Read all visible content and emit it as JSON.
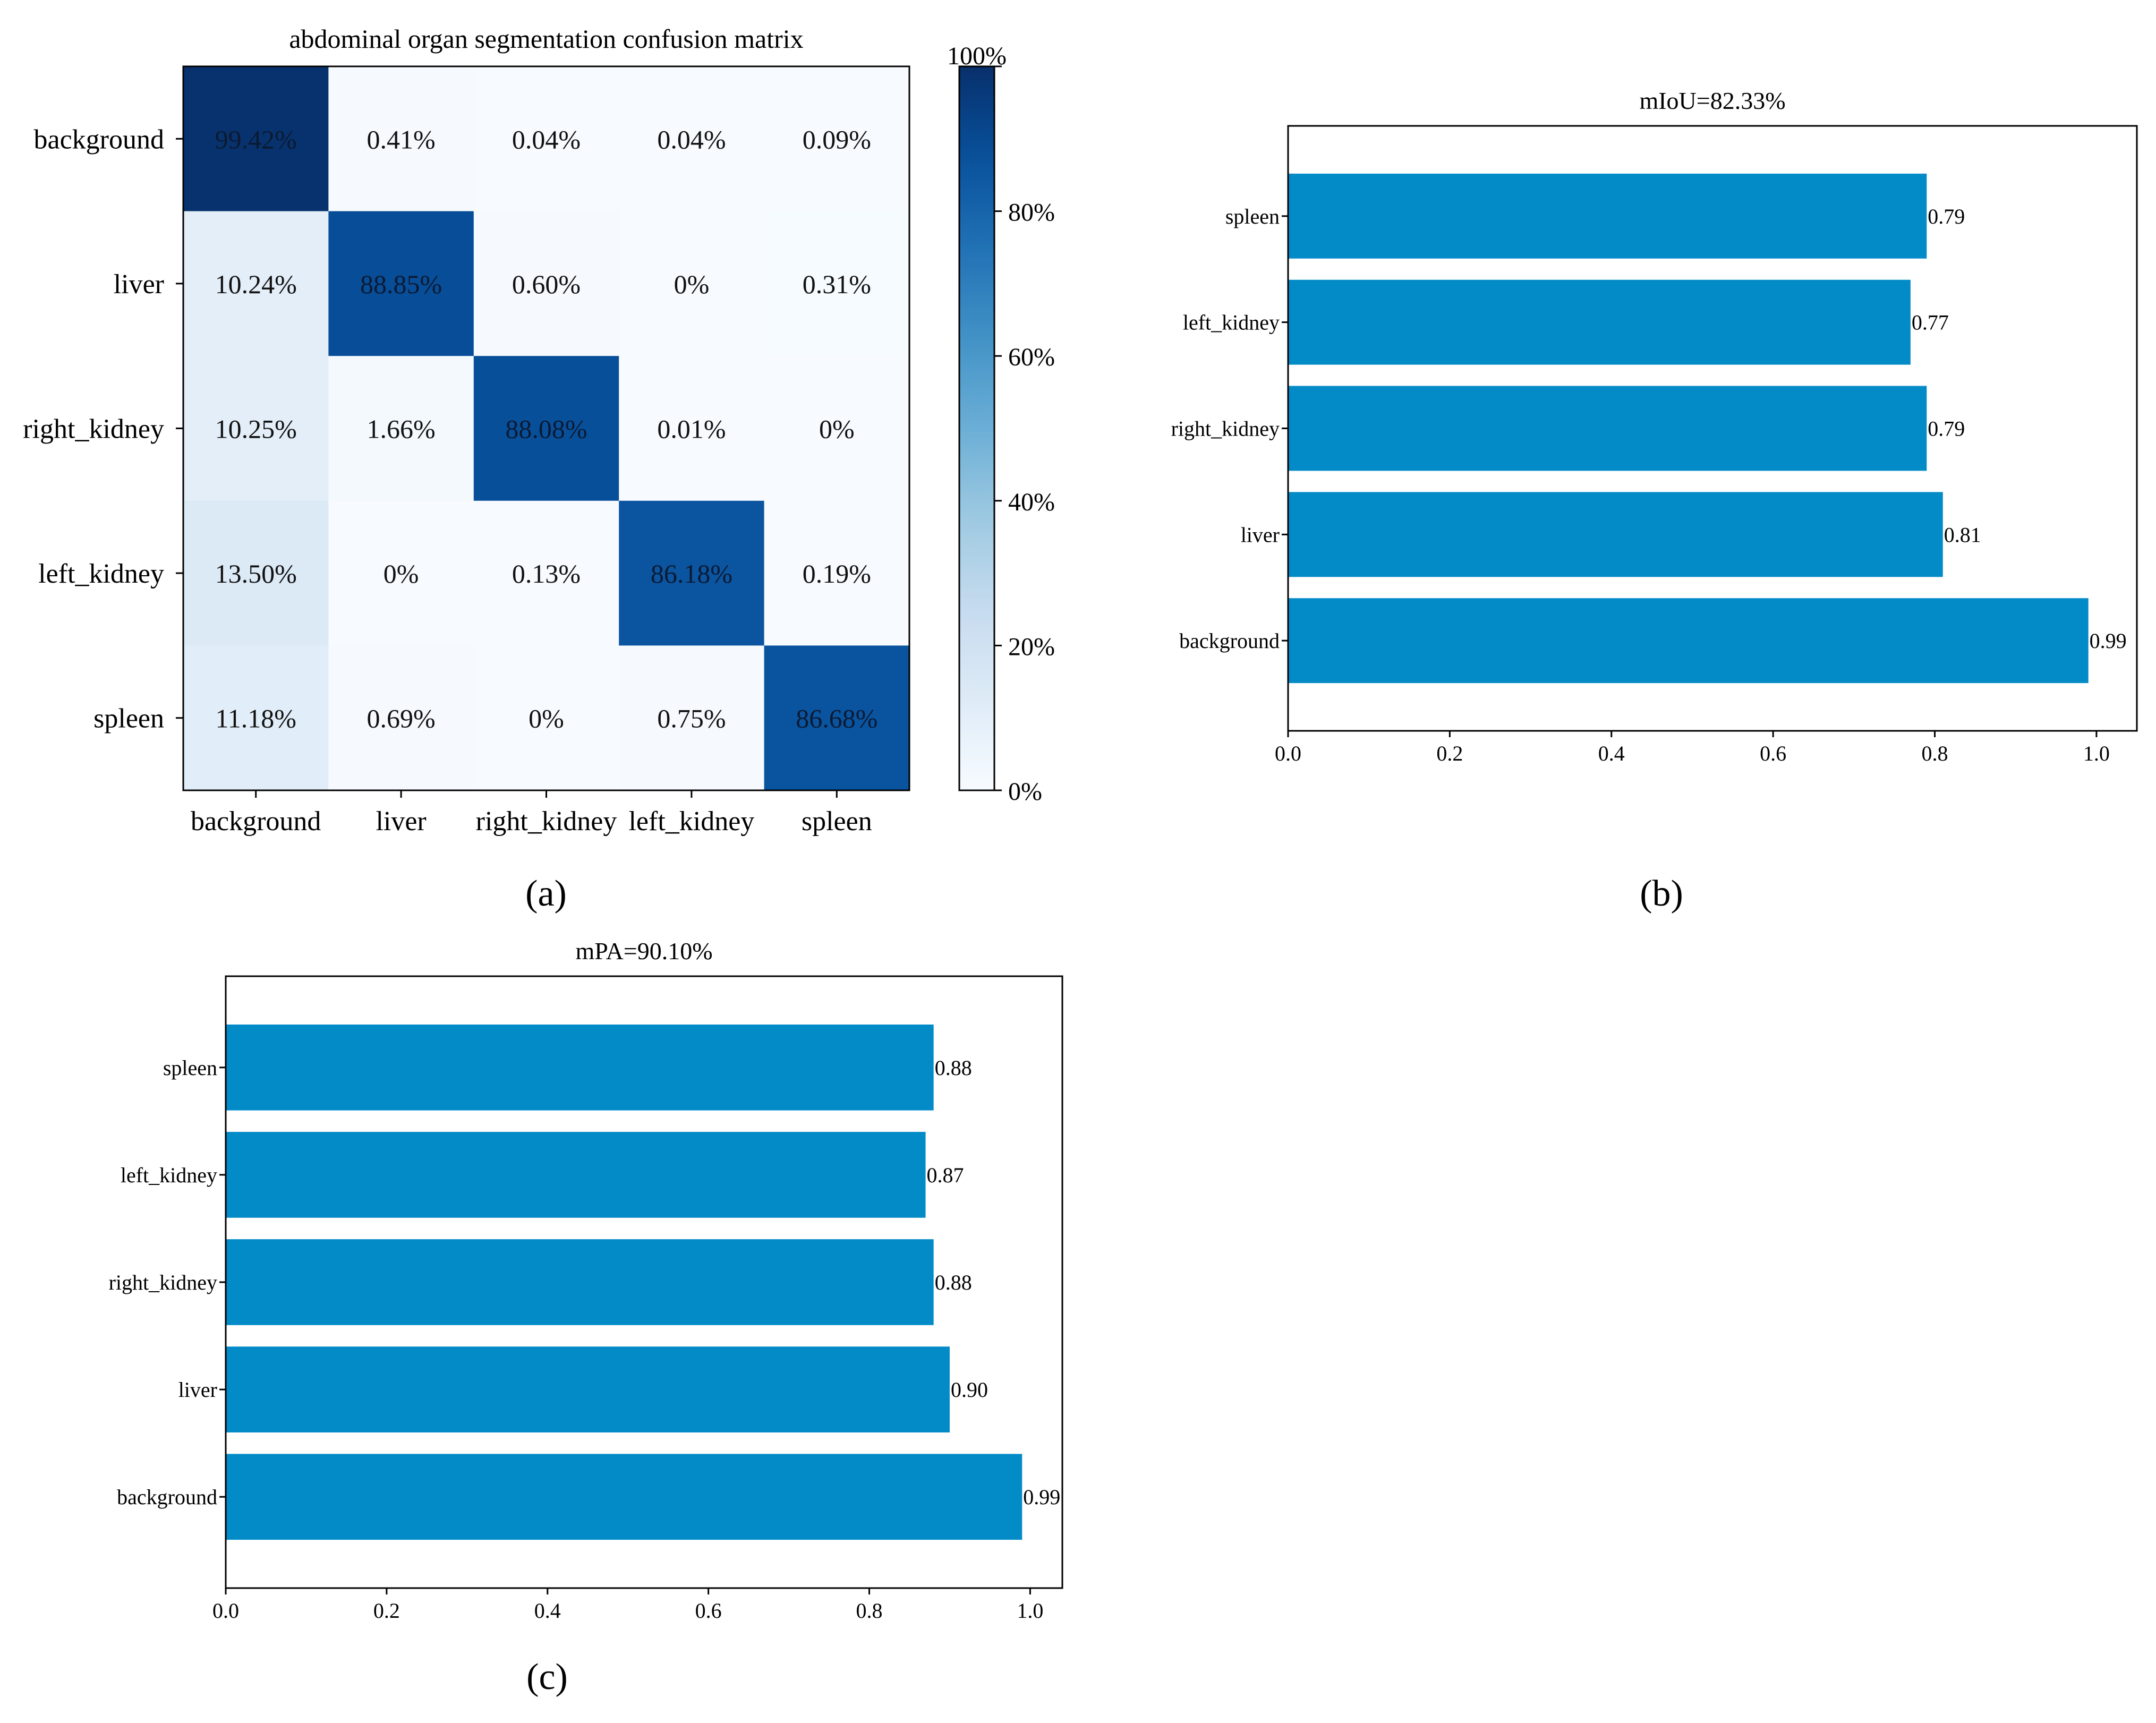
{
  "colors": {
    "bar": "#038bc8",
    "axis": "#000000",
    "cmap": [
      "#f7fbff",
      "#deebf7",
      "#c6dbef",
      "#9ecae1",
      "#6baed6",
      "#4292c6",
      "#2171b5",
      "#08519c",
      "#08306b"
    ]
  },
  "chart_data": [
    {
      "type": "heatmap",
      "panel_label": "(a)",
      "title": "abdominal organ segmentation confusion matrix",
      "xlabel": "",
      "ylabel": "",
      "row_labels": [
        "background",
        "liver",
        "right_kidney",
        "left_kidney",
        "spleen"
      ],
      "col_labels": [
        "background",
        "liver",
        "right_kidney",
        "left_kidney",
        "spleen"
      ],
      "values": [
        [
          99.42,
          0.41,
          0.04,
          0.04,
          0.09
        ],
        [
          10.24,
          88.85,
          0.6,
          0,
          0.31
        ],
        [
          10.25,
          1.66,
          88.08,
          0.01,
          0
        ],
        [
          13.5,
          0,
          0.13,
          86.18,
          0.19
        ],
        [
          11.18,
          0.69,
          0,
          0.75,
          86.68
        ]
      ],
      "cell_labels": [
        [
          "99.42%",
          "0.41%",
          "0.04%",
          "0.04%",
          "0.09%"
        ],
        [
          "10.24%",
          "88.85%",
          "0.60%",
          "0%",
          "0.31%"
        ],
        [
          "10.25%",
          "1.66%",
          "88.08%",
          "0.01%",
          "0%"
        ],
        [
          "13.50%",
          "0%",
          "0.13%",
          "86.18%",
          "0.19%"
        ],
        [
          "11.18%",
          "0.69%",
          "0%",
          "0.75%",
          "86.68%"
        ]
      ],
      "colorbar": {
        "range": [
          0,
          100
        ],
        "ticks": [
          0,
          20,
          40,
          60,
          80,
          100
        ],
        "tick_labels": [
          "0%",
          "20%",
          "40%",
          "60%",
          "80%",
          "100%"
        ]
      }
    },
    {
      "type": "bar",
      "orientation": "horizontal",
      "panel_label": "(b)",
      "title": "mIoU=82.33%",
      "xlabel": "",
      "ylabel": "",
      "categories": [
        "background",
        "liver",
        "right_kidney",
        "left_kidney",
        "spleen"
      ],
      "values": [
        0.99,
        0.81,
        0.79,
        0.77,
        0.79
      ],
      "value_labels": [
        "0.99",
        "0.81",
        "0.79",
        "0.77",
        "0.79"
      ],
      "xlim": [
        0.0,
        1.05
      ],
      "xticks": [
        0.0,
        0.2,
        0.4,
        0.6,
        0.8,
        1.0
      ],
      "xtick_labels": [
        "0.0",
        "0.2",
        "0.4",
        "0.6",
        "0.8",
        "1.0"
      ]
    },
    {
      "type": "bar",
      "orientation": "horizontal",
      "panel_label": "(c)",
      "title": "mPA=90.10%",
      "xlabel": "",
      "ylabel": "",
      "categories": [
        "background",
        "liver",
        "right_kidney",
        "left_kidney",
        "spleen"
      ],
      "values": [
        0.99,
        0.9,
        0.88,
        0.87,
        0.88
      ],
      "value_labels": [
        "0.99",
        "0.90",
        "0.88",
        "0.87",
        "0.88"
      ],
      "xlim": [
        0.0,
        1.04
      ],
      "xticks": [
        0.0,
        0.2,
        0.4,
        0.6,
        0.8,
        1.0
      ],
      "xtick_labels": [
        "0.0",
        "0.2",
        "0.4",
        "0.6",
        "0.8",
        "1.0"
      ]
    }
  ]
}
